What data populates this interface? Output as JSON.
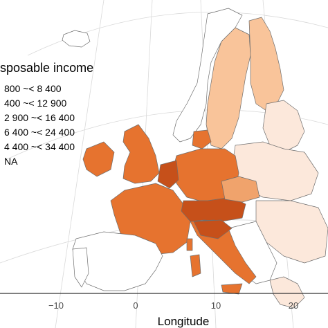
{
  "legend": {
    "title": "sposable income",
    "items": [
      {
        "label": "800 ~< 8 400",
        "color": "#fce8db"
      },
      {
        "label": "400 ~< 12 900",
        "color": "#f9c49a"
      },
      {
        "label": "2 900 ~< 16 400",
        "color": "#f0a36c"
      },
      {
        "label": "6 400 ~< 24 400",
        "color": "#e6732f"
      },
      {
        "label": "4 400 ~< 34 400",
        "color": "#c6501a"
      },
      {
        "label": "NA",
        "color": "#ffffff"
      }
    ]
  },
  "x_axis": {
    "title": "Longitude",
    "ticks": [
      "−10",
      "0",
      "10",
      "20"
    ]
  },
  "map_classes": {
    "nordic": "#f9c49a",
    "east": "#fce8db",
    "west_core": "#e6732f",
    "alpine_core": "#c6501a",
    "south_east": "#f0a36c",
    "na": "#ffffff",
    "sea": "#ffffff"
  }
}
